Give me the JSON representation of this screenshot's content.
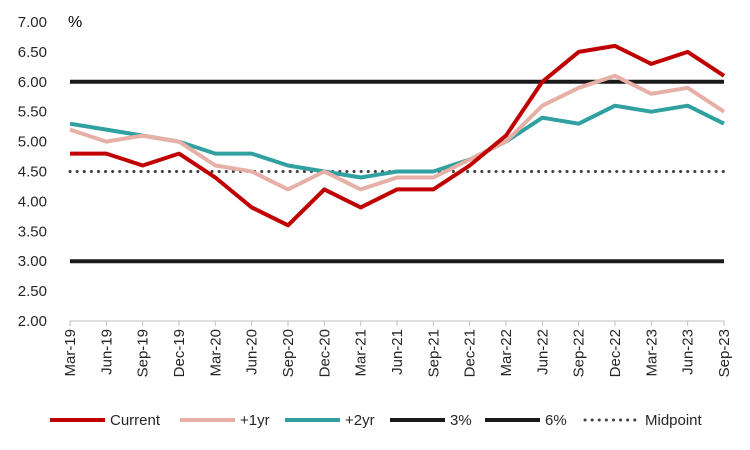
{
  "chart_data": {
    "type": "line",
    "unit_label": "%",
    "ylim": [
      2.0,
      7.0
    ],
    "y_ticks": [
      "2.00",
      "2.50",
      "3.00",
      "3.50",
      "4.00",
      "4.50",
      "5.00",
      "5.50",
      "6.00",
      "6.50",
      "7.00"
    ],
    "categories": [
      "Mar-19",
      "Jun-19",
      "Sep-19",
      "Dec-19",
      "Mar-20",
      "Jun-20",
      "Sep-20",
      "Dec-20",
      "Mar-21",
      "Jun-21",
      "Sep-21",
      "Dec-21",
      "Mar-22",
      "Jun-22",
      "Sep-22",
      "Dec-22",
      "Mar-23",
      "Jun-23",
      "Sep-23"
    ],
    "grid": false,
    "legend_position": "bottom",
    "series": [
      {
        "name": "Current",
        "color": "#c00000",
        "style": "solid",
        "values": [
          4.8,
          4.8,
          4.6,
          4.8,
          4.4,
          3.9,
          3.6,
          4.2,
          3.9,
          4.2,
          4.2,
          4.6,
          5.1,
          6.0,
          6.5,
          6.6,
          6.3,
          6.5,
          6.1
        ]
      },
      {
        "name": "+1yr",
        "color": "#e6b0a6",
        "style": "solid",
        "values": [
          5.2,
          5.0,
          5.1,
          5.0,
          4.6,
          4.5,
          4.2,
          4.5,
          4.2,
          4.4,
          4.4,
          4.7,
          5.0,
          5.6,
          5.9,
          6.1,
          5.8,
          5.9,
          5.5
        ]
      },
      {
        "name": "+2yr",
        "color": "#30a0a0",
        "style": "solid",
        "values": [
          5.3,
          5.2,
          5.1,
          5.0,
          4.8,
          4.8,
          4.6,
          4.5,
          4.4,
          4.5,
          4.5,
          4.7,
          5.0,
          5.4,
          5.3,
          5.6,
          5.5,
          5.6,
          5.3
        ]
      },
      {
        "name": "3%",
        "color": "#1a1a1a",
        "style": "solid",
        "values": [
          3,
          3,
          3,
          3,
          3,
          3,
          3,
          3,
          3,
          3,
          3,
          3,
          3,
          3,
          3,
          3,
          3,
          3,
          3
        ]
      },
      {
        "name": "6%",
        "color": "#1a1a1a",
        "style": "solid",
        "values": [
          6,
          6,
          6,
          6,
          6,
          6,
          6,
          6,
          6,
          6,
          6,
          6,
          6,
          6,
          6,
          6,
          6,
          6,
          6
        ]
      },
      {
        "name": "Midpoint",
        "color": "#404040",
        "style": "dotted",
        "values": [
          4.5,
          4.5,
          4.5,
          4.5,
          4.5,
          4.5,
          4.5,
          4.5,
          4.5,
          4.5,
          4.5,
          4.5,
          4.5,
          4.5,
          4.5,
          4.5,
          4.5,
          4.5,
          4.5
        ]
      }
    ]
  }
}
